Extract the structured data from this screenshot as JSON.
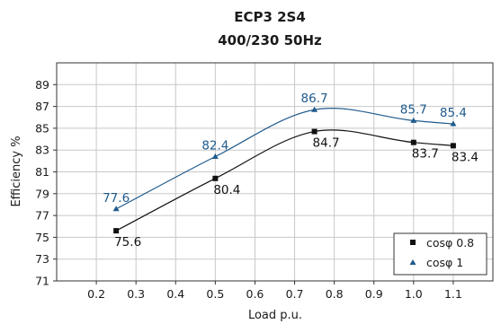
{
  "chart_data": {
    "type": "line",
    "title": "ECP3 2S4",
    "subtitle": "400/230 50Hz",
    "xlabel": "Load p.u.",
    "ylabel": "Efficiency %",
    "xlim": [
      0.1,
      1.2
    ],
    "ylim": [
      71,
      91
    ],
    "xticks": [
      "0.2",
      "0.3",
      "0.4",
      "0.5",
      "0.6",
      "0.7",
      "0.8",
      "0.9",
      "1.0",
      "1.1"
    ],
    "yticks": [
      "71",
      "73",
      "75",
      "77",
      "79",
      "81",
      "83",
      "85",
      "87",
      "89"
    ],
    "grid": true,
    "legend_position": "bottom-right",
    "series": [
      {
        "name": "cosφ 0.8",
        "color": "#111111",
        "marker": "square",
        "label_position": "below",
        "x": [
          0.25,
          0.5,
          0.75,
          1.0,
          1.1
        ],
        "y": [
          75.6,
          80.4,
          84.7,
          83.7,
          83.4
        ],
        "labels": [
          "75.6",
          "80.4",
          "84.7",
          "83.7",
          "83.4"
        ]
      },
      {
        "name": "cosφ 1",
        "color": "#1f5a8c",
        "marker": "triangle",
        "label_position": "above",
        "x": [
          0.25,
          0.5,
          0.75,
          1.0,
          1.1
        ],
        "y": [
          77.6,
          82.4,
          86.7,
          85.7,
          85.4
        ],
        "labels": [
          "77.6",
          "82.4",
          "86.7",
          "85.7",
          "85.4"
        ]
      }
    ]
  }
}
